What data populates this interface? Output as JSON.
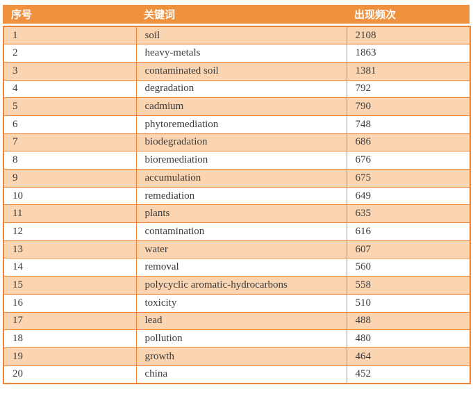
{
  "chart_data": {
    "type": "table",
    "columns": [
      {
        "key": "no",
        "label": "序号"
      },
      {
        "key": "keyword",
        "label": "关键词"
      },
      {
        "key": "frequency",
        "label": "出现频次"
      }
    ],
    "rows": [
      {
        "no": "1",
        "keyword": "soil",
        "frequency": "2108"
      },
      {
        "no": "2",
        "keyword": "heavy-metals",
        "frequency": "1863"
      },
      {
        "no": "3",
        "keyword": "contaminated soil",
        "frequency": "1381"
      },
      {
        "no": "4",
        "keyword": "degradation",
        "frequency": "792"
      },
      {
        "no": "5",
        "keyword": "cadmium",
        "frequency": "790"
      },
      {
        "no": "6",
        "keyword": "phytoremediation",
        "frequency": "748"
      },
      {
        "no": "7",
        "keyword": "biodegradation",
        "frequency": "686"
      },
      {
        "no": "8",
        "keyword": "bioremediation",
        "frequency": "676"
      },
      {
        "no": "9",
        "keyword": "accumulation",
        "frequency": "675"
      },
      {
        "no": "10",
        "keyword": "remediation",
        "frequency": "649"
      },
      {
        "no": "11",
        "keyword": "plants",
        "frequency": "635"
      },
      {
        "no": "12",
        "keyword": "contamination",
        "frequency": "616"
      },
      {
        "no": "13",
        "keyword": "water",
        "frequency": "607"
      },
      {
        "no": "14",
        "keyword": "removal",
        "frequency": "560"
      },
      {
        "no": "15",
        "keyword": "polycyclic aromatic-hydrocarbons",
        "frequency": "558"
      },
      {
        "no": "16",
        "keyword": "toxicity",
        "frequency": "510"
      },
      {
        "no": "17",
        "keyword": "lead",
        "frequency": "488"
      },
      {
        "no": "18",
        "keyword": "pollution",
        "frequency": "480"
      },
      {
        "no": "19",
        "keyword": "growth",
        "frequency": "464"
      },
      {
        "no": "20",
        "keyword": "china",
        "frequency": "452"
      }
    ]
  },
  "colors": {
    "header_bg": "#F0913D",
    "border": "#ED8333",
    "band_row_bg": "#FBD5B2",
    "plain_row_bg": "#FFFFFF",
    "header_text": "#FFFFFF",
    "body_text": "#3B3B3B"
  }
}
